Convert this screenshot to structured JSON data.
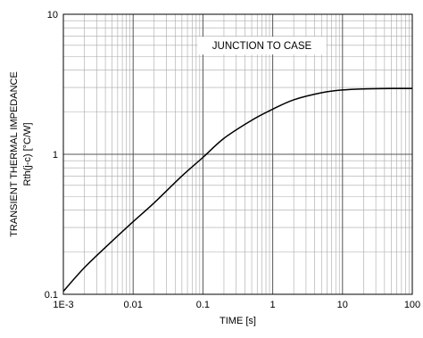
{
  "chart_data": {
    "type": "line",
    "title": "",
    "xlabel": "TIME [s]",
    "ylabel_line1": "TRANSIENT THERMAL IMPEDANCE",
    "ylabel_line2": "Rth(j-c) [°C/W]",
    "x_scale": "log",
    "y_scale": "log",
    "xlim": [
      0.001,
      100
    ],
    "ylim": [
      0.1,
      10
    ],
    "grid": true,
    "x_ticks": [
      {
        "value": 0.001,
        "label": "1E-3"
      },
      {
        "value": 0.01,
        "label": "0.01"
      },
      {
        "value": 0.1,
        "label": "0.1"
      },
      {
        "value": 1,
        "label": "1"
      },
      {
        "value": 10,
        "label": "10"
      },
      {
        "value": 100,
        "label": "100"
      }
    ],
    "y_ticks": [
      {
        "value": 0.1,
        "label": "0.1"
      },
      {
        "value": 1,
        "label": "1"
      },
      {
        "value": 10,
        "label": "10"
      }
    ],
    "annotation": "JUNCTION TO CASE",
    "series": [
      {
        "x": [
          0.001,
          0.002,
          0.005,
          0.01,
          0.02,
          0.05,
          0.1,
          0.2,
          0.5,
          1,
          2,
          5,
          10,
          20,
          50,
          100
        ],
        "y": [
          0.105,
          0.155,
          0.24,
          0.33,
          0.45,
          0.7,
          0.95,
          1.3,
          1.75,
          2.1,
          2.45,
          2.75,
          2.88,
          2.93,
          2.95,
          2.95
        ]
      }
    ]
  }
}
